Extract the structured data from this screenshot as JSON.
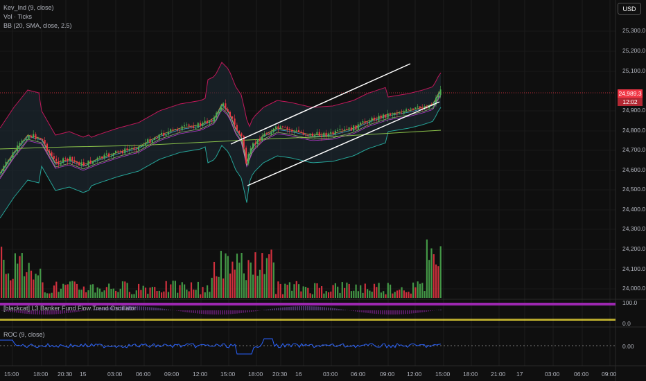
{
  "legends": {
    "main_indicator": "Kev_Ind  (9, close)",
    "volume": "Vol · Ticks",
    "bollinger": "BB (20, SMA, close, 2.5)",
    "oscillator": "[blackcat] L3 Banker Fund Flow Trend Oscillator",
    "roc": "ROC (9, close)"
  },
  "toolbar": {
    "currency": "USD"
  },
  "price_axis": {
    "ticks": [
      "25,300.0",
      "25,200.0",
      "25,100.0",
      "24,900.0",
      "24,800.0",
      "24,700.0",
      "24,600.0",
      "24,500.0",
      "24,400.0",
      "24,300.0",
      "24,200.0",
      "24,100.0",
      "24,000.0"
    ],
    "current_price": "24,989.3",
    "countdown": "12:02"
  },
  "oscillator_axis": {
    "ticks": [
      "100.0",
      "0.0"
    ]
  },
  "roc_axis": {
    "ticks": [
      "0.00"
    ]
  },
  "time_axis": {
    "labels": [
      "15:00",
      "18:00",
      "20:30",
      "15",
      "03:00",
      "06:00",
      "09:00",
      "12:00",
      "15:00",
      "18:00",
      "20:30",
      "16",
      "03:00",
      "06:00",
      "09:00",
      "12:00",
      "15:00",
      "18:00",
      "21:00",
      "17",
      "03:00",
      "06:00",
      "09:00"
    ]
  },
  "colors": {
    "background": "#0f0f0f",
    "up": "#4caf50",
    "down": "#f23645",
    "bb_band": "#c2185b",
    "bb_lower": "#26a69a",
    "bb_fill": "#1c2a33",
    "roc_line": "#2962ff",
    "osc_magenta": "#9c27b0",
    "osc_yellow": "#ffeb3b",
    "channel": "#ffffff"
  }
}
